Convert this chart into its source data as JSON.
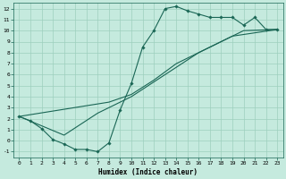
{
  "xlabel": "Humidex (Indice chaleur)",
  "background_color": "#c5eade",
  "grid_color": "#9dcfbe",
  "line_color": "#1a6655",
  "xlim": [
    -0.5,
    23.5
  ],
  "ylim": [
    -1.5,
    12.5
  ],
  "xticks": [
    0,
    1,
    2,
    3,
    4,
    5,
    6,
    7,
    8,
    9,
    10,
    11,
    12,
    13,
    14,
    15,
    16,
    17,
    18,
    19,
    20,
    21,
    22,
    23
  ],
  "yticks": [
    -1,
    0,
    1,
    2,
    3,
    4,
    5,
    6,
    7,
    8,
    9,
    10,
    11,
    12
  ],
  "jagged_x": [
    0,
    1,
    2,
    3,
    4,
    5,
    6,
    7,
    8,
    9,
    10,
    11,
    12,
    13,
    14,
    15,
    16,
    17,
    18,
    19,
    20,
    21,
    22,
    23
  ],
  "jagged_y": [
    2.2,
    1.8,
    1.1,
    0.1,
    -0.3,
    -0.8,
    -0.8,
    -1.0,
    -0.2,
    2.8,
    5.2,
    8.5,
    10.0,
    12.0,
    12.2,
    11.8,
    11.5,
    11.2,
    11.2,
    11.2,
    10.5,
    11.2,
    10.1,
    10.1
  ],
  "diag1_x": [
    0,
    8,
    10,
    12,
    14,
    17,
    20,
    23
  ],
  "diag1_y": [
    2.2,
    3.5,
    4.2,
    5.5,
    7.0,
    8.5,
    10.0,
    10.1
  ],
  "diag2_x": [
    0,
    4,
    7,
    10,
    13,
    16,
    19,
    23
  ],
  "diag2_y": [
    2.2,
    0.5,
    2.5,
    4.0,
    6.0,
    8.0,
    9.5,
    10.1
  ]
}
